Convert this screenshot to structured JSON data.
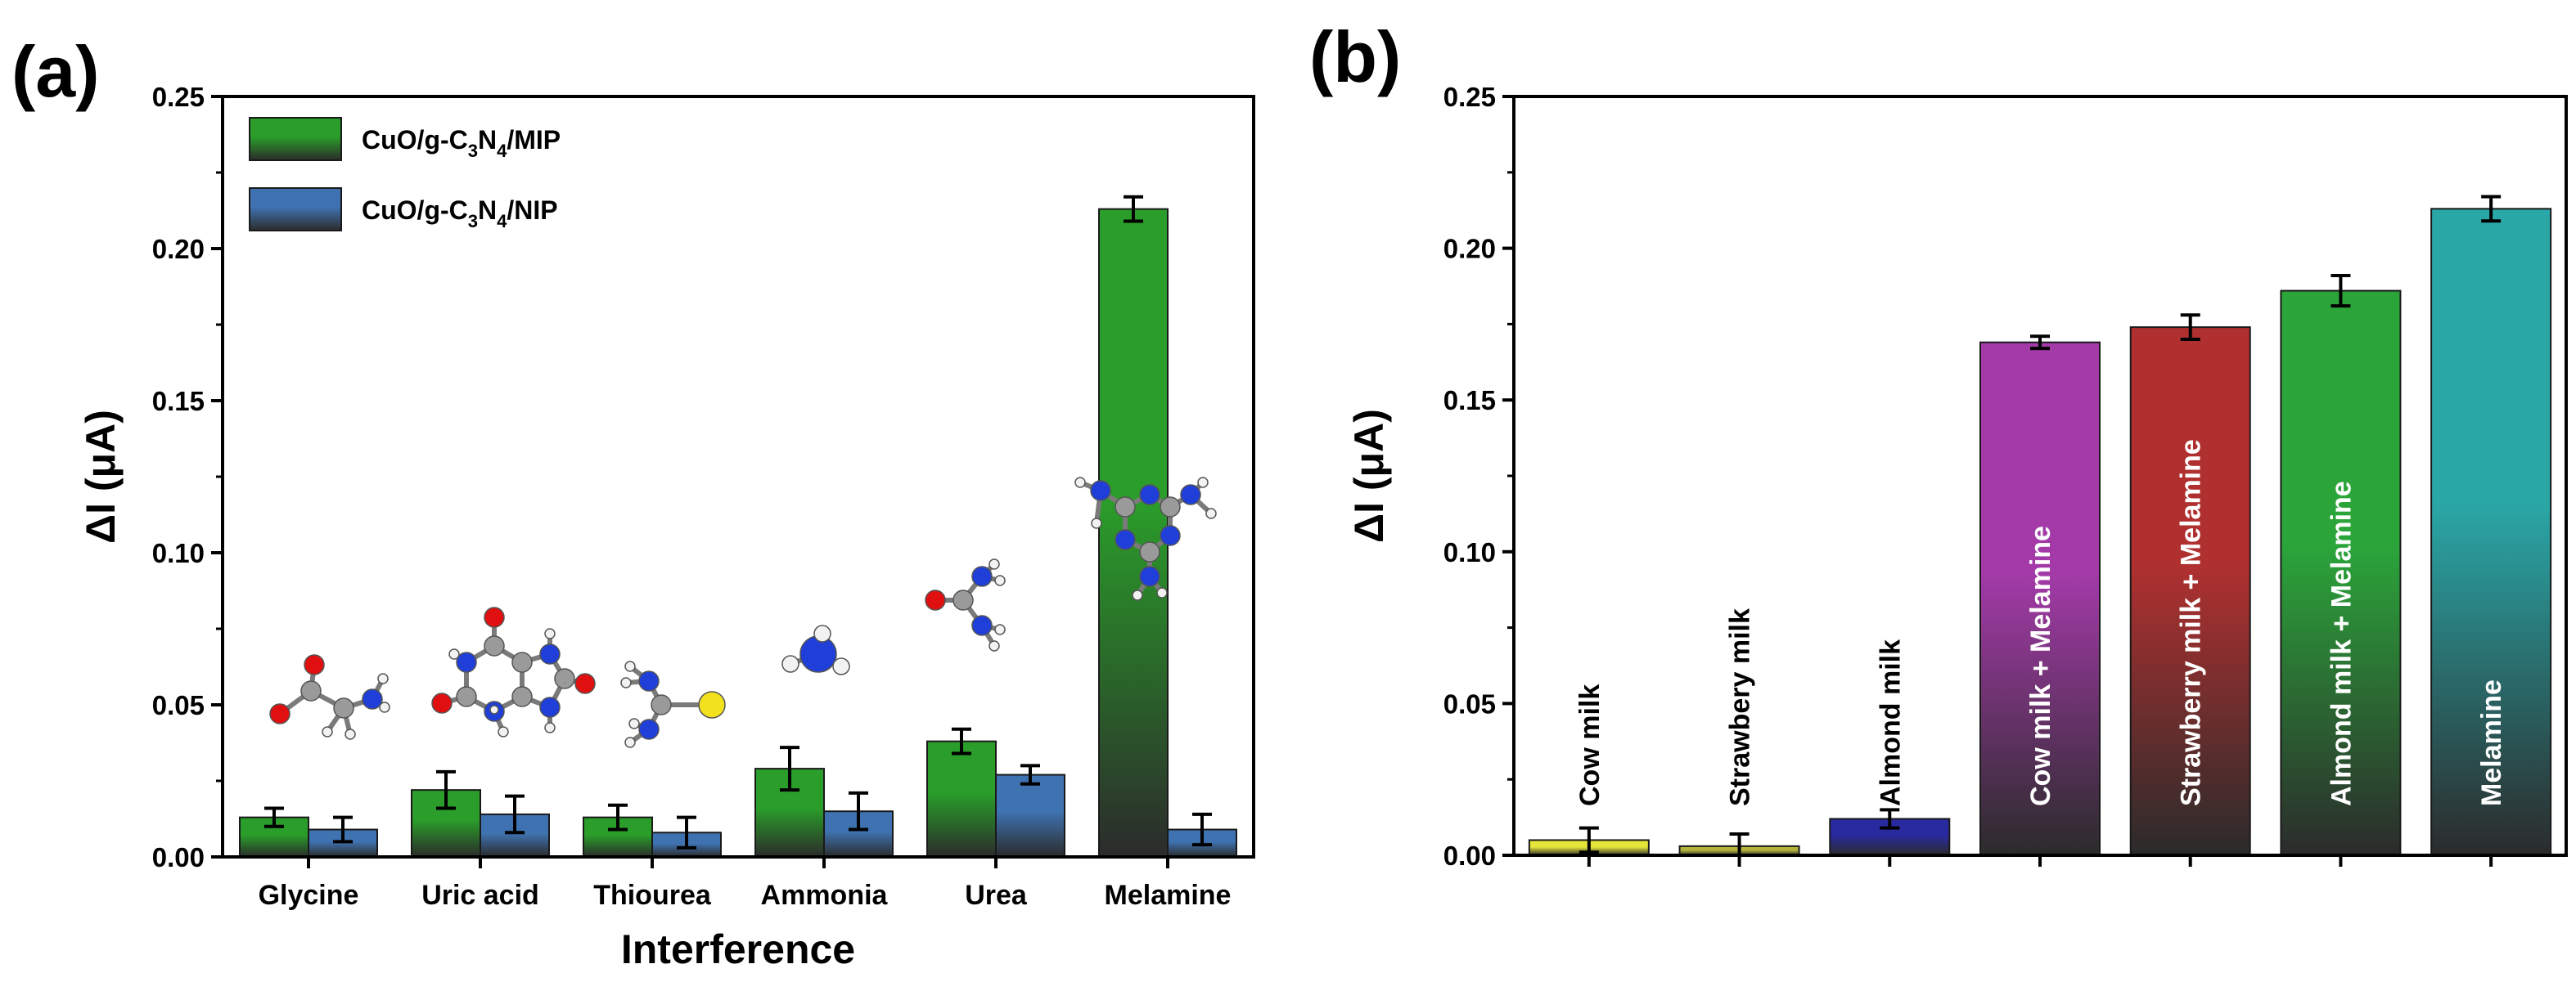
{
  "chart_data": [
    {
      "panel": "(a)",
      "type": "bar",
      "xlabel": "Interference",
      "ylabel": "ΔI (μA)",
      "ylim": [
        0,
        0.25
      ],
      "yticks": [
        "0.00",
        "0.05",
        "0.10",
        "0.15",
        "0.20",
        "0.25"
      ],
      "categories": [
        "Glycine",
        "Uric acid",
        "Thiourea",
        "Ammonia",
        "Urea",
        "Melamine"
      ],
      "series": [
        {
          "name": "CuO/g-C3N4/MIP",
          "legend_parts": [
            "CuO/g-C",
            "3",
            "N",
            "4",
            "/MIP"
          ],
          "color": "#2a9d2a",
          "values": [
            0.013,
            0.022,
            0.013,
            0.029,
            0.038,
            0.213
          ],
          "errors": [
            0.003,
            0.006,
            0.004,
            0.007,
            0.004,
            0.004
          ]
        },
        {
          "name": "CuO/g-C3N4/NIP",
          "legend_parts": [
            "CuO/g-C",
            "3",
            "N",
            "4",
            "/NIP"
          ],
          "color": "#3f72b0",
          "values": [
            0.009,
            0.014,
            0.008,
            0.015,
            0.027,
            0.009
          ],
          "errors": [
            0.004,
            0.006,
            0.005,
            0.006,
            0.003,
            0.005
          ]
        }
      ],
      "molecule_icons": [
        "glycine",
        "uric-acid",
        "thiourea",
        "ammonia",
        "urea",
        "melamine"
      ]
    },
    {
      "panel": "(b)",
      "type": "bar",
      "xlabel": "",
      "ylabel": "ΔI (μA)",
      "ylim": [
        0,
        0.25
      ],
      "yticks": [
        "0.00",
        "0.05",
        "0.10",
        "0.15",
        "0.20",
        "0.25"
      ],
      "categories": [
        "Cow milk",
        "Strawbery milk",
        "Almond milk",
        "Cow milk + Melamine",
        "Strawberry milk + Melamine",
        "Almond milk + Melamine",
        "Melamine"
      ],
      "values": [
        0.005,
        0.003,
        0.012,
        0.169,
        0.174,
        0.186,
        0.213
      ],
      "errors": [
        0.004,
        0.004,
        0.003,
        0.002,
        0.004,
        0.005,
        0.004
      ],
      "colors": [
        "#e5e53a",
        "#b3b33c",
        "#2a2aa0",
        "#a33aa8",
        "#b03030",
        "#2ba53a",
        "#2aa8a8"
      ],
      "label_colors": [
        "dark",
        "dark",
        "dark",
        "light",
        "light",
        "light",
        "light"
      ]
    }
  ]
}
